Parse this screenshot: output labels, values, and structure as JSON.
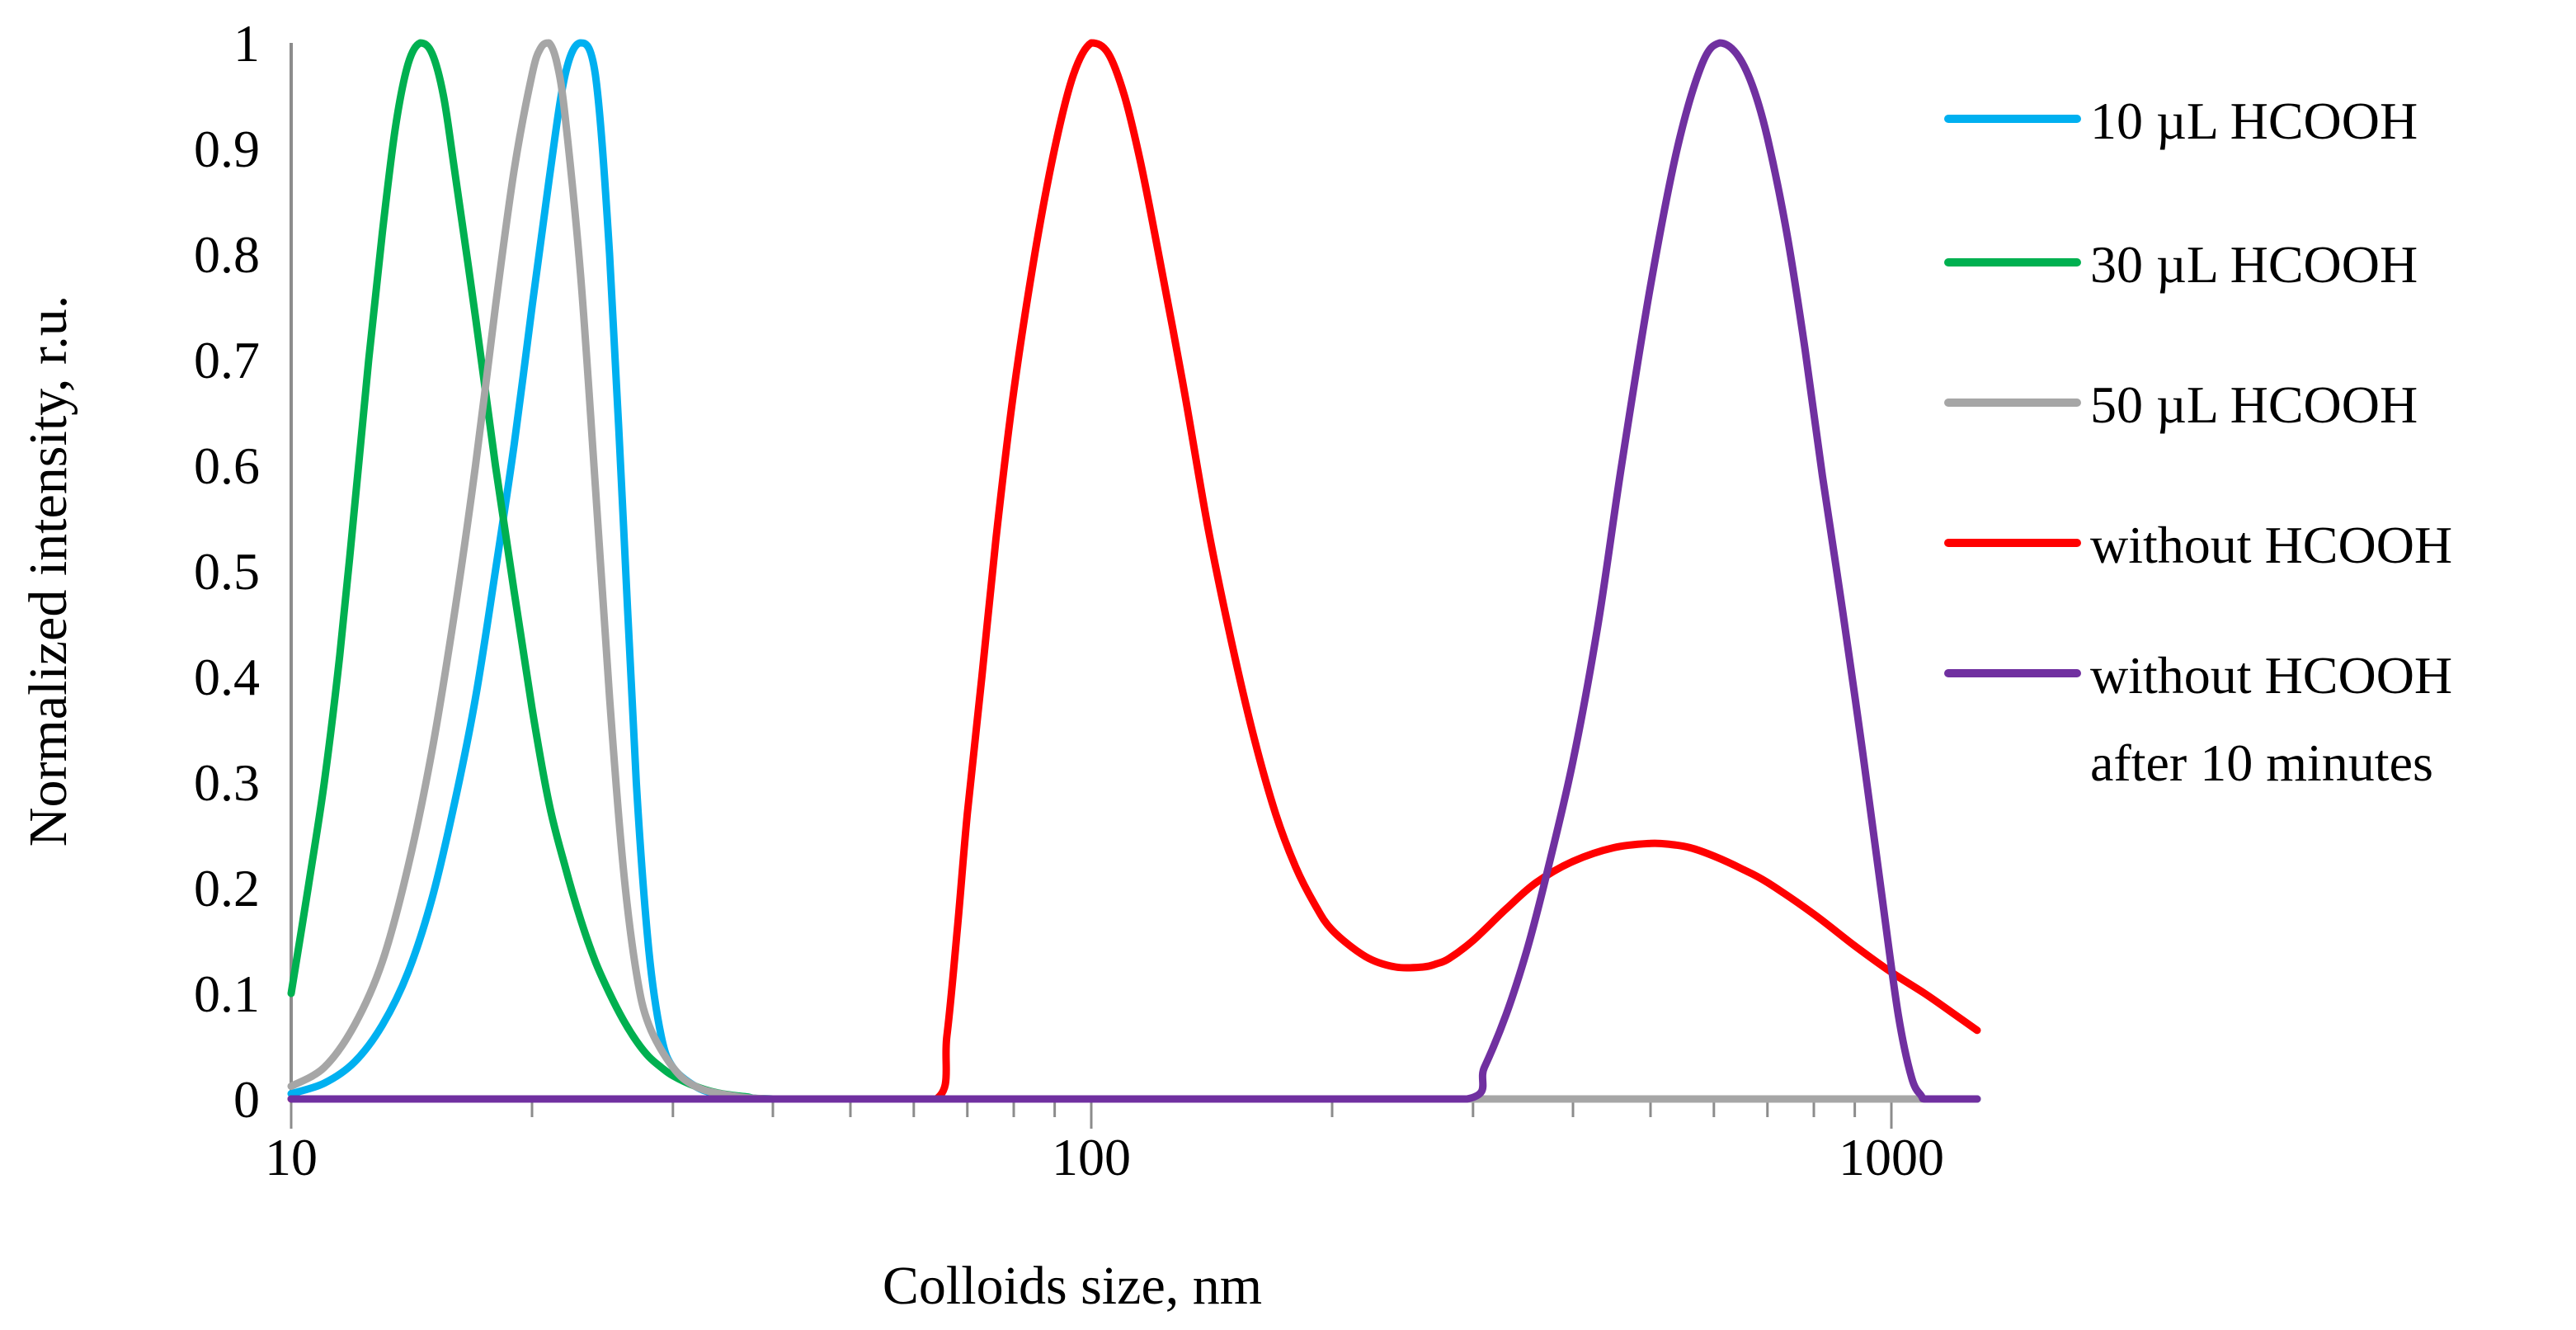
{
  "chart_data": {
    "type": "line",
    "title": "",
    "xlabel": "Colloids size, nm",
    "ylabel": "Normalized intensity, r.u.",
    "x_scale": "log",
    "xlim": [
      10,
      1280
    ],
    "ylim": [
      0,
      1
    ],
    "x_ticks": [
      10,
      100,
      1000
    ],
    "x_tick_labels": [
      "10",
      "100",
      "1000"
    ],
    "y_ticks": [
      0,
      0.1,
      0.2,
      0.3,
      0.4,
      0.5,
      0.6,
      0.7,
      0.8,
      0.9,
      1
    ],
    "y_tick_labels": [
      "0",
      "0.1",
      "0.2",
      "0.3",
      "0.4",
      "0.5",
      "0.6",
      "0.7",
      "0.8",
      "0.9",
      "1"
    ],
    "grid": false,
    "legend_position": "right",
    "series": [
      {
        "name": "10 µL HCOOH",
        "color": "#00B0F0",
        "x": [
          10,
          11,
          12,
          13,
          14,
          15,
          16,
          17,
          18,
          19,
          20,
          21,
          22,
          23,
          24,
          25,
          26,
          27,
          28,
          29,
          30,
          32,
          34,
          37,
          40,
          60,
          100,
          1280
        ],
        "y": [
          0.005,
          0.015,
          0.035,
          0.07,
          0.12,
          0.19,
          0.28,
          0.38,
          0.5,
          0.62,
          0.75,
          0.87,
          0.97,
          1.0,
          0.97,
          0.8,
          0.55,
          0.3,
          0.14,
          0.06,
          0.03,
          0.012,
          0.005,
          0.002,
          0.0,
          0.0,
          0.0,
          0.0
        ]
      },
      {
        "name": "30 µL HCOOH",
        "color": "#00B050",
        "x": [
          10,
          10.5,
          11,
          11.5,
          12,
          12.5,
          13,
          13.5,
          14,
          14.5,
          15,
          15.5,
          16,
          17,
          18,
          19,
          20,
          21,
          22,
          23,
          24,
          25,
          26,
          27,
          28,
          29,
          30,
          32,
          34,
          37,
          40,
          60,
          1280
        ],
        "y": [
          0.1,
          0.2,
          0.3,
          0.42,
          0.56,
          0.7,
          0.82,
          0.92,
          0.98,
          1.0,
          0.99,
          0.95,
          0.88,
          0.74,
          0.6,
          0.48,
          0.37,
          0.28,
          0.22,
          0.17,
          0.13,
          0.1,
          0.075,
          0.055,
          0.04,
          0.03,
          0.022,
          0.012,
          0.006,
          0.002,
          0.0,
          0.0,
          0.0
        ]
      },
      {
        "name": "50 µL HCOOH",
        "color": "#A6A6A6",
        "x": [
          10,
          11,
          12,
          13,
          14,
          15,
          16,
          17,
          18,
          19,
          20,
          20.5,
          21,
          21.5,
          22,
          23,
          24,
          25,
          26,
          27,
          28,
          30,
          32,
          35,
          40,
          60,
          1280
        ],
        "y": [
          0.012,
          0.03,
          0.07,
          0.13,
          0.22,
          0.33,
          0.46,
          0.6,
          0.75,
          0.88,
          0.97,
          0.995,
          1.0,
          0.98,
          0.93,
          0.78,
          0.58,
          0.38,
          0.22,
          0.12,
          0.07,
          0.03,
          0.012,
          0.004,
          0.0,
          0.0,
          0.0
        ]
      },
      {
        "name": "without HCOOH",
        "color": "#FF0000",
        "x": [
          10,
          50,
          64,
          66,
          68,
          70,
          73,
          76,
          80,
          85,
          90,
          95,
          100,
          105,
          110,
          115,
          120,
          130,
          140,
          150,
          160,
          170,
          180,
          190,
          200,
          220,
          240,
          260,
          270,
          280,
          300,
          330,
          360,
          400,
          450,
          500,
          530,
          560,
          600,
          650,
          700,
          800,
          900,
          1000,
          1100,
          1200,
          1280
        ],
        "y": [
          0.0,
          0.0,
          0.0,
          0.06,
          0.16,
          0.27,
          0.4,
          0.53,
          0.67,
          0.8,
          0.9,
          0.97,
          1.0,
          0.99,
          0.95,
          0.89,
          0.82,
          0.68,
          0.54,
          0.43,
          0.34,
          0.27,
          0.22,
          0.185,
          0.16,
          0.135,
          0.125,
          0.125,
          0.128,
          0.133,
          0.15,
          0.18,
          0.205,
          0.225,
          0.238,
          0.242,
          0.241,
          0.238,
          0.23,
          0.218,
          0.205,
          0.175,
          0.145,
          0.12,
          0.1,
          0.08,
          0.065
        ]
      },
      {
        "name": "without HCOOH after 10 minutes",
        "label_lines": [
          "without HCOOH",
          "after 10 minutes"
        ],
        "color": "#7030A0",
        "x": [
          10,
          200,
          295,
          310,
          330,
          350,
          370,
          400,
          430,
          460,
          500,
          540,
          580,
          610,
          640,
          670,
          700,
          740,
          780,
          820,
          870,
          920,
          970,
          1020,
          1060,
          1090,
          1100,
          1150,
          1280
        ],
        "y": [
          0.0,
          0.0,
          0.0,
          0.03,
          0.08,
          0.14,
          0.21,
          0.32,
          0.45,
          0.6,
          0.77,
          0.9,
          0.98,
          1.0,
          0.99,
          0.96,
          0.91,
          0.82,
          0.71,
          0.59,
          0.46,
          0.33,
          0.2,
          0.08,
          0.02,
          0.003,
          0.0,
          0.0,
          0.0
        ]
      }
    ]
  }
}
